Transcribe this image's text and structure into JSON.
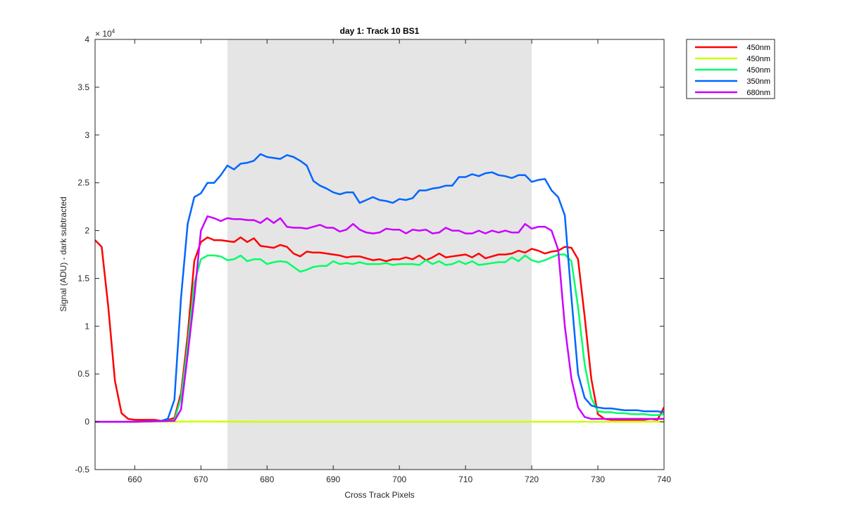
{
  "chart_data": {
    "type": "line",
    "title": "day 1: Track 10  BS1",
    "xlabel": "Cross Track Pixels",
    "ylabel": "Signal (ADU) - dark subtracted",
    "xlim": [
      654,
      740
    ],
    "ylim": [
      -5000,
      40000
    ],
    "exponent_label": "× 10",
    "exponent_power": "4",
    "x_ticks": [
      660,
      670,
      680,
      690,
      700,
      710,
      720,
      730,
      740
    ],
    "x_tick_labels": [
      "660",
      "670",
      "680",
      "690",
      "700",
      "710",
      "720",
      "730",
      "740"
    ],
    "y_ticks": [
      -5000,
      0,
      5000,
      10000,
      15000,
      20000,
      25000,
      30000,
      35000,
      40000
    ],
    "y_tick_labels": [
      "-0.5",
      "0",
      "0.5",
      "1",
      "1.5",
      "2",
      "2.5",
      "3",
      "3.5",
      "4"
    ],
    "grid": false,
    "legend_position": "outside-top-right",
    "shaded_region": {
      "x": [
        674,
        720
      ],
      "color": "#e5e5e5"
    },
    "series": [
      {
        "name": "450nm",
        "color": "#ff0000",
        "x": [
          654,
          655,
          656,
          657,
          658,
          659,
          660,
          661,
          662,
          663,
          664,
          665,
          666,
          667,
          668,
          669,
          670,
          671,
          672,
          673,
          674,
          675,
          676,
          677,
          678,
          679,
          680,
          681,
          682,
          683,
          684,
          685,
          686,
          687,
          688,
          689,
          690,
          691,
          692,
          693,
          694,
          695,
          696,
          697,
          698,
          699,
          700,
          701,
          702,
          703,
          704,
          705,
          706,
          707,
          708,
          709,
          710,
          711,
          712,
          713,
          714,
          715,
          716,
          717,
          718,
          719,
          720,
          721,
          722,
          723,
          724,
          725,
          726,
          727,
          728,
          729,
          730,
          731,
          732,
          733,
          734,
          735,
          736,
          737,
          738,
          739,
          740
        ],
        "y": [
          19000,
          18300,
          12000,
          4300,
          900,
          300,
          200,
          200,
          200,
          200,
          100,
          200,
          400,
          3000,
          9000,
          16800,
          18800,
          19300,
          19000,
          19000,
          18900,
          18800,
          19300,
          18800,
          19200,
          18400,
          18300,
          18200,
          18500,
          18300,
          17600,
          17300,
          17800,
          17700,
          17700,
          17600,
          17500,
          17400,
          17200,
          17300,
          17300,
          17100,
          16900,
          17000,
          16800,
          17000,
          17000,
          17200,
          17000,
          17400,
          16900,
          17200,
          17600,
          17200,
          17300,
          17400,
          17500,
          17200,
          17600,
          17100,
          17300,
          17500,
          17500,
          17600,
          17900,
          17700,
          18100,
          17900,
          17600,
          17800,
          17900,
          18300,
          18200,
          17000,
          11000,
          4500,
          800,
          300,
          200,
          200,
          200,
          200,
          200,
          200,
          300,
          200,
          1500
        ]
      },
      {
        "name": "450nm",
        "color": "#ccff00",
        "x": [
          654,
          660,
          670,
          680,
          690,
          700,
          710,
          720,
          730,
          740
        ],
        "y": [
          0,
          0,
          20,
          0,
          0,
          0,
          0,
          0,
          0,
          0
        ]
      },
      {
        "name": "450nm",
        "color": "#00ff66",
        "x": [
          654,
          660,
          665,
          666,
          667,
          668,
          669,
          670,
          671,
          672,
          673,
          674,
          675,
          676,
          677,
          678,
          679,
          680,
          681,
          682,
          683,
          684,
          685,
          686,
          687,
          688,
          689,
          690,
          691,
          692,
          693,
          694,
          695,
          696,
          697,
          698,
          699,
          700,
          701,
          702,
          703,
          704,
          705,
          706,
          707,
          708,
          709,
          710,
          711,
          712,
          713,
          714,
          715,
          716,
          717,
          718,
          719,
          720,
          721,
          722,
          723,
          724,
          725,
          726,
          727,
          728,
          729,
          730,
          731,
          732,
          733,
          734,
          735,
          736,
          737,
          738,
          739,
          740
        ],
        "y": [
          0,
          0,
          100,
          200,
          2500,
          8000,
          14500,
          17000,
          17400,
          17400,
          17300,
          16900,
          17000,
          17400,
          16800,
          17000,
          17000,
          16500,
          16700,
          16800,
          16700,
          16200,
          15700,
          15900,
          16200,
          16300,
          16300,
          16800,
          16500,
          16600,
          16500,
          16700,
          16500,
          16500,
          16500,
          16600,
          16400,
          16500,
          16500,
          16500,
          16400,
          16900,
          16500,
          16800,
          16400,
          16500,
          16800,
          16500,
          16800,
          16400,
          16500,
          16600,
          16700,
          16700,
          17200,
          16800,
          17400,
          16900,
          16700,
          16900,
          17200,
          17500,
          17500,
          16800,
          12000,
          6000,
          2500,
          1100,
          1000,
          1000,
          900,
          900,
          800,
          800,
          800,
          700,
          700,
          800
        ]
      },
      {
        "name": "350nm",
        "color": "#0066ff",
        "x": [
          654,
          660,
          664,
          665,
          666,
          667,
          668,
          669,
          670,
          671,
          672,
          673,
          674,
          675,
          676,
          677,
          678,
          679,
          680,
          681,
          682,
          683,
          684,
          685,
          686,
          687,
          688,
          689,
          690,
          691,
          692,
          693,
          694,
          695,
          696,
          697,
          698,
          699,
          700,
          701,
          702,
          703,
          704,
          705,
          706,
          707,
          708,
          709,
          710,
          711,
          712,
          713,
          714,
          715,
          716,
          717,
          718,
          719,
          720,
          721,
          722,
          723,
          724,
          725,
          726,
          727,
          728,
          729,
          730,
          731,
          732,
          733,
          734,
          735,
          736,
          737,
          738,
          739,
          740
        ],
        "y": [
          0,
          0,
          100,
          300,
          2300,
          13000,
          20700,
          23500,
          23900,
          25000,
          25000,
          25800,
          26800,
          26400,
          27000,
          27100,
          27300,
          28000,
          27700,
          27600,
          27500,
          27900,
          27700,
          27300,
          26800,
          25200,
          24700,
          24400,
          24000,
          23800,
          24000,
          24000,
          22900,
          23200,
          23500,
          23200,
          23100,
          22900,
          23300,
          23200,
          23400,
          24200,
          24200,
          24400,
          24500,
          24700,
          24700,
          25600,
          25600,
          25900,
          25700,
          26000,
          26100,
          25800,
          25700,
          25500,
          25800,
          25800,
          25100,
          25300,
          25400,
          24200,
          23500,
          21600,
          13000,
          5000,
          2500,
          1700,
          1500,
          1400,
          1400,
          1300,
          1200,
          1200,
          1200,
          1100,
          1100,
          1100,
          1000
        ]
      },
      {
        "name": "680nm",
        "color": "#cc00ff",
        "x": [
          654,
          660,
          666,
          667,
          668,
          669,
          670,
          671,
          672,
          673,
          674,
          675,
          676,
          677,
          678,
          679,
          680,
          681,
          682,
          683,
          684,
          685,
          686,
          687,
          688,
          689,
          690,
          691,
          692,
          693,
          694,
          695,
          696,
          697,
          698,
          699,
          700,
          701,
          702,
          703,
          704,
          705,
          706,
          707,
          708,
          709,
          710,
          711,
          712,
          713,
          714,
          715,
          716,
          717,
          718,
          719,
          720,
          721,
          722,
          723,
          724,
          725,
          726,
          727,
          728,
          729,
          730,
          731,
          732,
          733,
          734,
          735,
          736,
          737,
          738,
          739,
          740
        ],
        "y": [
          0,
          0,
          100,
          1300,
          7000,
          13000,
          20000,
          21500,
          21300,
          21000,
          21300,
          21200,
          21200,
          21100,
          21100,
          20800,
          21300,
          20800,
          21300,
          20400,
          20300,
          20300,
          20200,
          20400,
          20600,
          20300,
          20300,
          19900,
          20100,
          20700,
          20100,
          19800,
          19700,
          19800,
          20200,
          20100,
          20100,
          19700,
          20100,
          20000,
          20100,
          19700,
          19800,
          20300,
          20000,
          20000,
          19700,
          19700,
          20000,
          19700,
          20000,
          19800,
          20000,
          19800,
          19800,
          20700,
          20200,
          20400,
          20400,
          20000,
          18000,
          10000,
          4500,
          1500,
          500,
          300,
          300,
          300,
          300,
          300,
          300,
          300,
          300,
          300,
          300,
          300,
          300
        ]
      }
    ]
  }
}
